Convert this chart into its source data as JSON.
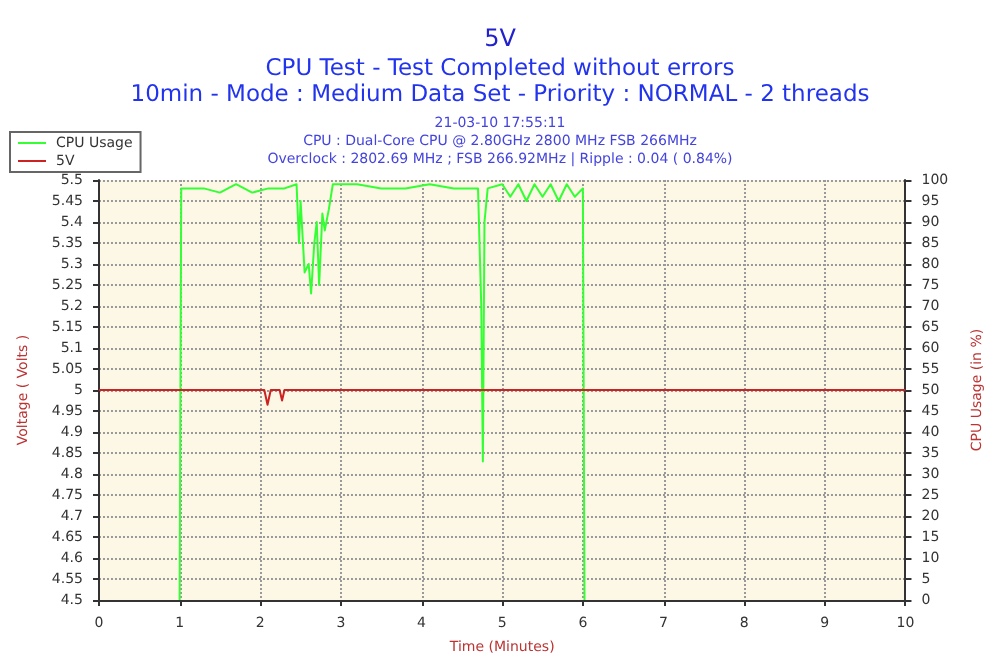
{
  "chart_data": {
    "type": "line",
    "title": "5V",
    "subtitle": "CPU Test - Test Completed without errors\n10min - Mode : Medium Data Set - Priority : NORMAL - 2 threads",
    "annotations": [
      "21-03-10 17:55:11",
      "CPU : Dual-Core CPU @ 2.80GHz 2800 MHz FSB 266MHz",
      "Overclock : 2802.69 MHz ; FSB 266.92MHz | Ripple : 0.04 ( 0.84%)"
    ],
    "xlabel": "Time (Minutes)",
    "ylabel": "Voltage ( Volts )",
    "y2label": "CPU Usage (in %)",
    "xlim": [
      0,
      10
    ],
    "xticks": [
      0,
      1,
      2,
      3,
      4,
      5,
      6,
      7,
      8,
      9,
      10
    ],
    "ylim": [
      4.5,
      5.5
    ],
    "yticks": [
      4.5,
      4.55,
      4.6,
      4.65,
      4.7,
      4.75,
      4.8,
      4.85,
      4.9,
      4.95,
      5,
      5.05,
      5.1,
      5.15,
      5.2,
      5.25,
      5.3,
      5.35,
      5.4,
      5.45,
      5.5
    ],
    "y2lim": [
      0,
      100
    ],
    "y2ticks": [
      0,
      5,
      10,
      15,
      20,
      25,
      30,
      35,
      40,
      45,
      50,
      55,
      60,
      65,
      70,
      75,
      80,
      85,
      90,
      95,
      100
    ],
    "grid": true,
    "legend": "top left",
    "marker": "none",
    "line_style": "solid",
    "series": [
      {
        "name": "CPU Usage",
        "color": "#33ff33",
        "axis": "y2",
        "x": [
          1,
          1.02,
          1.3,
          1.5,
          1.7,
          1.9,
          2.1,
          2.3,
          2.45,
          2.48,
          2.5,
          2.55,
          2.6,
          2.63,
          2.67,
          2.7,
          2.73,
          2.77,
          2.8,
          2.85,
          2.9,
          3.2,
          3.5,
          3.8,
          4.1,
          4.4,
          4.7,
          4.74,
          4.76,
          4.78,
          4.82,
          5.0,
          5.1,
          5.2,
          5.3,
          5.4,
          5.5,
          5.6,
          5.7,
          5.8,
          5.9,
          6.0,
          6.02
        ],
        "values": [
          0,
          98,
          98,
          97,
          99,
          97,
          98,
          98,
          99,
          85,
          95,
          78,
          80,
          73,
          85,
          90,
          75,
          92,
          88,
          93,
          99,
          99,
          98,
          98,
          99,
          98,
          98,
          70,
          33,
          90,
          98,
          99,
          96,
          99,
          95,
          99,
          96,
          99,
          95,
          99,
          96,
          98,
          0
        ]
      },
      {
        "name": "5V",
        "color": "#cc2222",
        "axis": "y",
        "x": [
          0,
          2.05,
          2.09,
          2.13,
          2.24,
          2.27,
          2.3,
          10
        ],
        "values": [
          5,
          5,
          4.965,
          5,
          5,
          4.975,
          5,
          5
        ]
      }
    ]
  }
}
